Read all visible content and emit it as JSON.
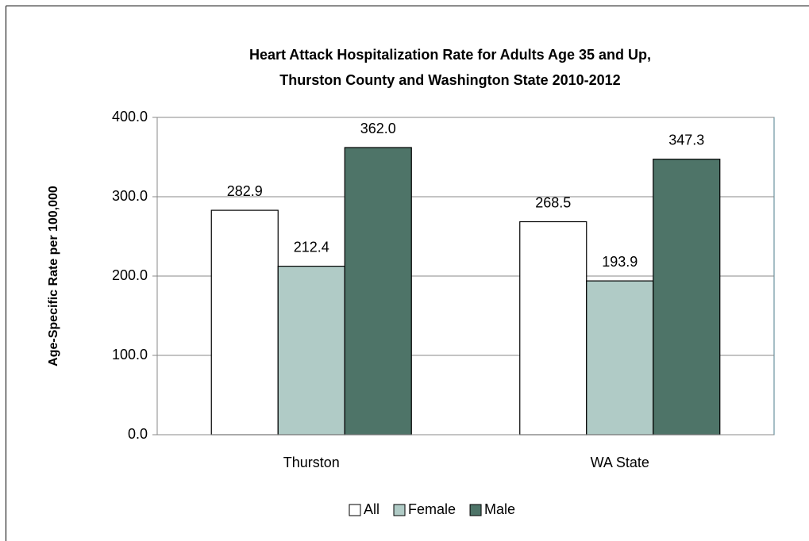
{
  "chart_data": {
    "type": "bar",
    "title": [
      "Heart Attack Hospitalization Rate for Adults Age 35 and Up,",
      "Thurston County and Washington State 2010-2012"
    ],
    "y_label": "Age-Specific Rate per 100,000",
    "categories": [
      "Thurston",
      "WA State"
    ],
    "series": [
      {
        "name": "All",
        "color": "#ffffff",
        "values": [
          282.9,
          268.5
        ]
      },
      {
        "name": "Female",
        "color": "#b0cbc6",
        "values": [
          212.4,
          193.9
        ]
      },
      {
        "name": "Male",
        "color": "#4e7468",
        "values": [
          362.0,
          347.3
        ],
        "value_labels": [
          "362.0",
          "347.3"
        ]
      }
    ],
    "ylim": [
      0,
      400
    ],
    "yticks": [
      {
        "value": 0,
        "label": "0.0"
      },
      {
        "value": 100,
        "label": "100.0"
      },
      {
        "value": 200,
        "label": "200.0"
      },
      {
        "value": 300,
        "label": "300.0"
      },
      {
        "value": 400,
        "label": "400.0"
      }
    ],
    "grid": true,
    "legend": "bottom"
  }
}
